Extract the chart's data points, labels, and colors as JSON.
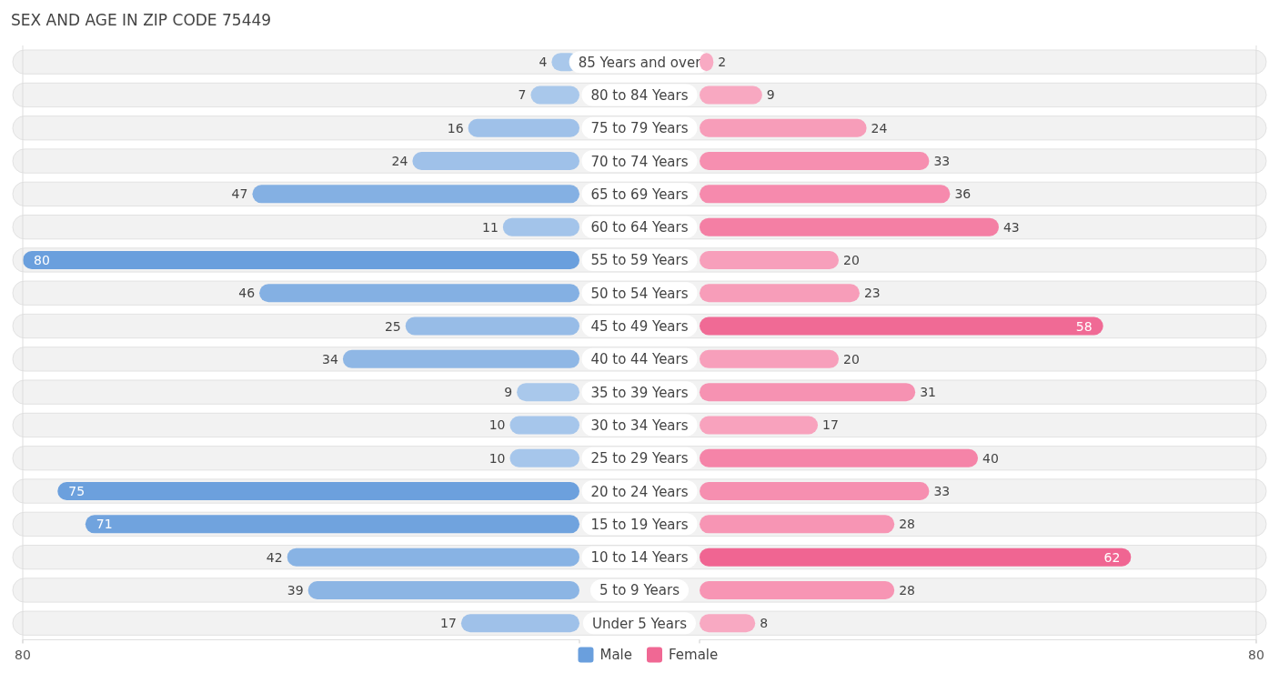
{
  "chart_data": [
    {
      "type": "bar",
      "orientation": "horizontal",
      "title": "SEX AND AGE IN ZIP CODE 75449",
      "categories": [
        "85 Years and over",
        "80 to 84 Years",
        "75 to 79 Years",
        "70 to 74 Years",
        "65 to 69 Years",
        "60 to 64 Years",
        "55 to 59 Years",
        "50 to 54 Years",
        "45 to 49 Years",
        "40 to 44 Years",
        "35 to 39 Years",
        "30 to 34 Years",
        "25 to 29 Years",
        "20 to 24 Years",
        "15 to 19 Years",
        "10 to 14 Years",
        "5 to 9 Years",
        "Under 5 Years"
      ],
      "series": [
        {
          "name": "Male",
          "color": "#6a9fdd",
          "values": [
            4,
            7,
            16,
            24,
            47,
            11,
            80,
            46,
            25,
            34,
            9,
            10,
            10,
            75,
            71,
            42,
            39,
            17
          ],
          "colors": [
            "#a9c8eb",
            "#a9c8eb",
            "#9fc1e9",
            "#9fc1e9",
            "#84b0e3",
            "#a3c4ea",
            "#6a9fdd",
            "#84b0e3",
            "#97bce7",
            "#8fb7e5",
            "#a9c8eb",
            "#a6c6eb",
            "#a6c6eb",
            "#6ca0dd",
            "#70a3de",
            "#88b3e4",
            "#8cb5e4",
            "#9fc1e9"
          ]
        }
      ],
      "xlim": [
        80,
        0
      ],
      "xticks": [
        80,
        {
          "value": 0,
          "label": null
        }
      ],
      "data_labels": true,
      "legend": "bottom right",
      "grid": false
    },
    {
      "type": "bar",
      "orientation": "horizontal",
      "categories": [
        "85 Years and over",
        "80 to 84 Years",
        "75 to 79 Years",
        "70 to 74 Years",
        "65 to 69 Years",
        "60 to 64 Years",
        "55 to 59 Years",
        "50 to 54 Years",
        "45 to 49 Years",
        "40 to 44 Years",
        "35 to 39 Years",
        "30 to 34 Years",
        "25 to 29 Years",
        "20 to 24 Years",
        "15 to 19 Years",
        "10 to 14 Years",
        "5 to 9 Years",
        "Under 5 Years"
      ],
      "series": [
        {
          "name": "Female",
          "color": "#f06894",
          "values": [
            2,
            9,
            24,
            33,
            36,
            43,
            20,
            23,
            58,
            20,
            31,
            17,
            40,
            33,
            28,
            62,
            28,
            8
          ],
          "colors": [
            "#f8aac3",
            "#f8a8c1",
            "#f79db9",
            "#f68fb0",
            "#f68aad",
            "#f47fa4",
            "#f79fbb",
            "#f79db9",
            "#f06a95",
            "#f79fbb",
            "#f692b2",
            "#f8a2bd",
            "#f584a8",
            "#f68fb0",
            "#f795b4",
            "#f06592",
            "#f795b4",
            "#f8a9c2"
          ]
        }
      ],
      "xlim": [
        0,
        80
      ],
      "xticks": [
        {
          "value": 0,
          "label": null
        },
        80
      ],
      "tick_labels": "x",
      "data_labels": true,
      "legend": "bottom left",
      "grid": false
    }
  ]
}
